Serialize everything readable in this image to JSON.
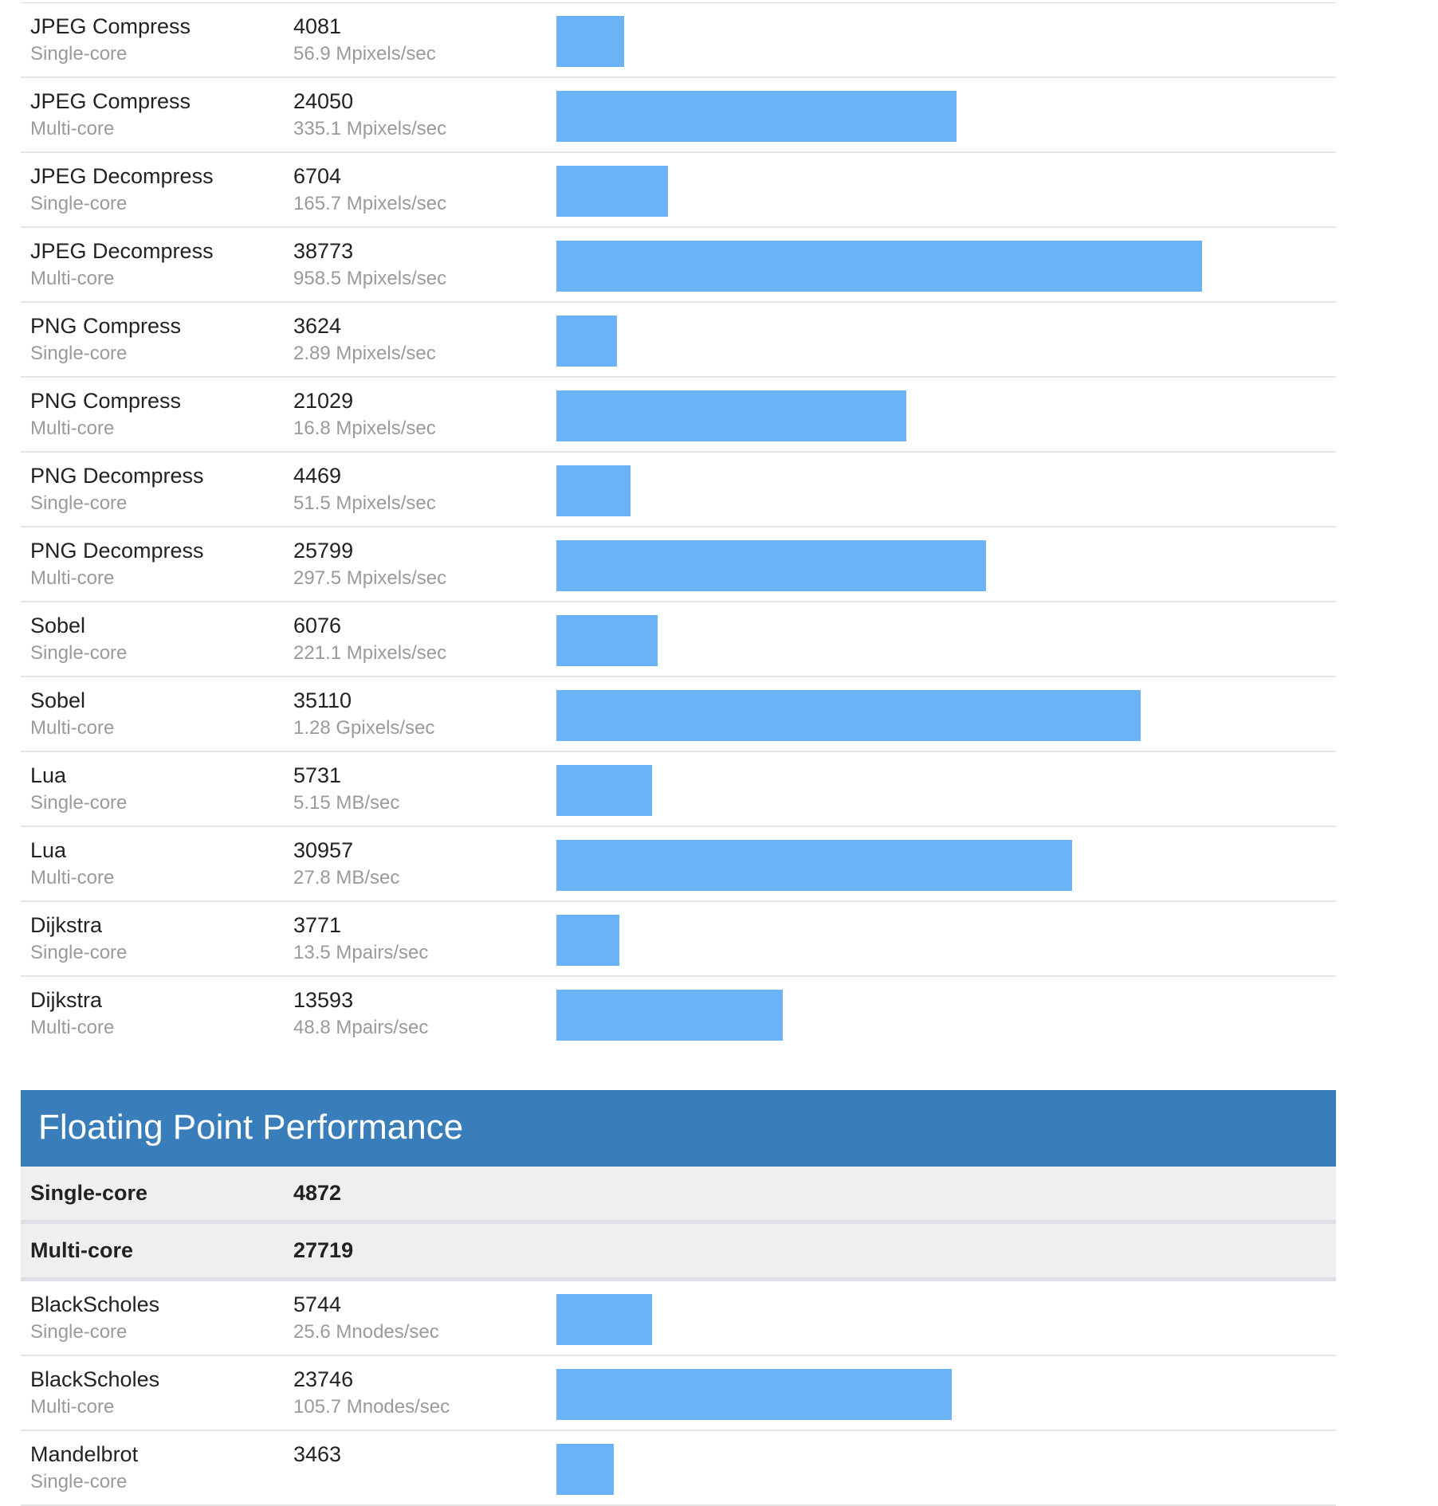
{
  "integer_rows": [
    {
      "name": "JPEG Compress",
      "mode": "Single-core",
      "score": "4081",
      "rate": "56.9 Mpixels/sec",
      "score_value": 4081
    },
    {
      "name": "JPEG Compress",
      "mode": "Multi-core",
      "score": "24050",
      "rate": "335.1 Mpixels/sec",
      "score_value": 24050
    },
    {
      "name": "JPEG Decompress",
      "mode": "Single-core",
      "score": "6704",
      "rate": "165.7 Mpixels/sec",
      "score_value": 6704
    },
    {
      "name": "JPEG Decompress",
      "mode": "Multi-core",
      "score": "38773",
      "rate": "958.5 Mpixels/sec",
      "score_value": 38773
    },
    {
      "name": "PNG Compress",
      "mode": "Single-core",
      "score": "3624",
      "rate": "2.89 Mpixels/sec",
      "score_value": 3624
    },
    {
      "name": "PNG Compress",
      "mode": "Multi-core",
      "score": "21029",
      "rate": "16.8 Mpixels/sec",
      "score_value": 21029
    },
    {
      "name": "PNG Decompress",
      "mode": "Single-core",
      "score": "4469",
      "rate": "51.5 Mpixels/sec",
      "score_value": 4469
    },
    {
      "name": "PNG Decompress",
      "mode": "Multi-core",
      "score": "25799",
      "rate": "297.5 Mpixels/sec",
      "score_value": 25799
    },
    {
      "name": "Sobel",
      "mode": "Single-core",
      "score": "6076",
      "rate": "221.1 Mpixels/sec",
      "score_value": 6076
    },
    {
      "name": "Sobel",
      "mode": "Multi-core",
      "score": "35110",
      "rate": "1.28 Gpixels/sec",
      "score_value": 35110
    },
    {
      "name": "Lua",
      "mode": "Single-core",
      "score": "5731",
      "rate": "5.15 MB/sec",
      "score_value": 5731
    },
    {
      "name": "Lua",
      "mode": "Multi-core",
      "score": "30957",
      "rate": "27.8 MB/sec",
      "score_value": 30957
    },
    {
      "name": "Dijkstra",
      "mode": "Single-core",
      "score": "3771",
      "rate": "13.5 Mpairs/sec",
      "score_value": 3771
    },
    {
      "name": "Dijkstra",
      "mode": "Multi-core",
      "score": "13593",
      "rate": "48.8 Mpairs/sec",
      "score_value": 13593
    }
  ],
  "floating_point": {
    "title": "Floating Point Performance",
    "summary": [
      {
        "label": "Single-core",
        "value": "4872"
      },
      {
        "label": "Multi-core",
        "value": "27719"
      }
    ],
    "rows": [
      {
        "name": "BlackScholes",
        "mode": "Single-core",
        "score": "5744",
        "rate": "25.6 Mnodes/sec",
        "score_value": 5744
      },
      {
        "name": "BlackScholes",
        "mode": "Multi-core",
        "score": "23746",
        "rate": "105.7 Mnodes/sec",
        "score_value": 23746
      },
      {
        "name": "Mandelbrot",
        "mode": "Single-core",
        "score": "3463",
        "rate": "",
        "score_value": 3463
      }
    ]
  },
  "colors": {
    "bar": "#6cb2f6",
    "section_header": "#3a7dbb",
    "summary_bg": "#efefef",
    "secondary_text": "#9a9a9a"
  }
}
